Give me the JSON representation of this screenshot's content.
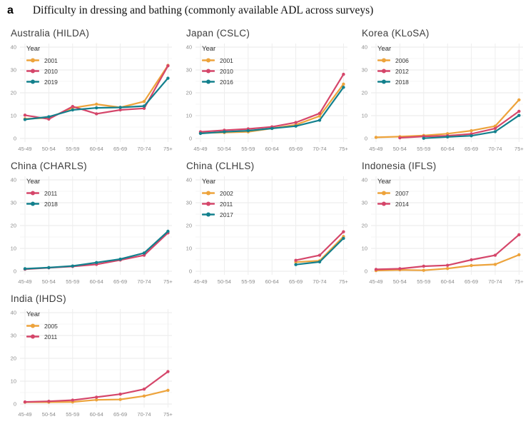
{
  "header": {
    "figure_label": "a",
    "title": "Difficulty in dressing and bathing (commonly available ADL across surveys)"
  },
  "palette": {
    "orange": "#EDA33B",
    "crimson": "#D5466A",
    "teal": "#13808D"
  },
  "chart_data": [
    {
      "type": "line",
      "title": "Australia (HILDA)",
      "legend_title": "Year",
      "legend_position": "top-left-inside",
      "grid": true,
      "categories": [
        "45-49",
        "50-54",
        "55-59",
        "60-64",
        "65-69",
        "70-74",
        "75+"
      ],
      "ylim": [
        0,
        40
      ],
      "yticks": [
        0,
        10,
        20,
        30,
        40
      ],
      "series": [
        {
          "name": "2001",
          "color": "#EDA33B",
          "values": [
            8.6,
            9.0,
            13.4,
            15.0,
            13.6,
            16.2,
            32.0
          ]
        },
        {
          "name": "2010",
          "color": "#D5466A",
          "values": [
            10.2,
            8.5,
            14.0,
            10.8,
            12.5,
            13.2,
            31.8
          ]
        },
        {
          "name": "2019",
          "color": "#13808D",
          "values": [
            8.3,
            9.5,
            12.5,
            13.4,
            13.6,
            14.2,
            26.4
          ]
        }
      ]
    },
    {
      "type": "line",
      "title": "Japan (CSLC)",
      "legend_title": "Year",
      "legend_position": "top-left-inside",
      "grid": true,
      "categories": [
        "45-49",
        "50-54",
        "55-59",
        "60-64",
        "65-69",
        "70-74",
        "75+"
      ],
      "ylim": [
        0,
        40
      ],
      "yticks": [
        0,
        10,
        20,
        30,
        40
      ],
      "series": [
        {
          "name": "2001",
          "color": "#EDA33B",
          "values": [
            2.4,
            2.6,
            2.9,
            4.4,
            6.0,
            9.8,
            23.8
          ]
        },
        {
          "name": "2010",
          "color": "#D5466A",
          "values": [
            2.9,
            3.6,
            4.2,
            5.1,
            7.0,
            11.0,
            28.1
          ]
        },
        {
          "name": "2016",
          "color": "#13808D",
          "values": [
            2.2,
            2.9,
            3.4,
            4.4,
            5.4,
            8.0,
            22.4
          ]
        }
      ]
    },
    {
      "type": "line",
      "title": "Korea (KLoSA)",
      "legend_title": "Year",
      "legend_position": "top-left-inside",
      "grid": true,
      "categories": [
        "45-49",
        "50-54",
        "55-59",
        "60-64",
        "65-69",
        "70-74",
        "75+"
      ],
      "ylim": [
        0,
        40
      ],
      "yticks": [
        0,
        10,
        20,
        30,
        40
      ],
      "series": [
        {
          "name": "2006",
          "color": "#EDA33B",
          "values": [
            0.5,
            0.8,
            1.3,
            2.1,
            3.4,
            5.4,
            16.9
          ]
        },
        {
          "name": "2012",
          "color": "#D5466A",
          "values": [
            null,
            0.3,
            0.9,
            1.2,
            2.0,
            4.4,
            11.9
          ]
        },
        {
          "name": "2018",
          "color": "#13808D",
          "values": [
            null,
            null,
            0.1,
            0.7,
            1.2,
            3.0,
            10.1
          ]
        }
      ]
    },
    {
      "type": "line",
      "title": "China (CHARLS)",
      "legend_title": "Year",
      "legend_position": "top-left-inside",
      "grid": true,
      "categories": [
        "45-49",
        "50-54",
        "55-59",
        "60-64",
        "65-69",
        "70-74",
        "75+"
      ],
      "ylim": [
        0,
        40
      ],
      "yticks": [
        0,
        10,
        20,
        30,
        40
      ],
      "series": [
        {
          "name": "2011",
          "color": "#D5466A",
          "values": [
            0.9,
            1.5,
            2.1,
            3.0,
            4.9,
            7.0,
            16.8
          ]
        },
        {
          "name": "2018",
          "color": "#13808D",
          "values": [
            1.1,
            1.6,
            2.3,
            3.8,
            5.3,
            8.0,
            17.5
          ]
        }
      ]
    },
    {
      "type": "line",
      "title": "China (CLHLS)",
      "legend_title": "Year",
      "legend_position": "top-left-inside",
      "grid": true,
      "categories": [
        "45-49",
        "50-54",
        "55-59",
        "60-64",
        "65-69",
        "70-74",
        "75+"
      ],
      "ylim": [
        0,
        40
      ],
      "yticks": [
        0,
        10,
        20,
        30,
        40
      ],
      "series": [
        {
          "name": "2002",
          "color": "#EDA33B",
          "values": [
            null,
            null,
            null,
            null,
            4.0,
            4.6,
            15.2
          ]
        },
        {
          "name": "2011",
          "color": "#D5466A",
          "values": [
            null,
            null,
            null,
            null,
            4.8,
            7.0,
            17.3
          ]
        },
        {
          "name": "2017",
          "color": "#13808D",
          "values": [
            null,
            null,
            null,
            null,
            2.9,
            4.1,
            14.4
          ]
        }
      ]
    },
    {
      "type": "line",
      "title": "Indonesia (IFLS)",
      "legend_title": "Year",
      "legend_position": "top-left-inside",
      "grid": true,
      "categories": [
        "45-49",
        "50-54",
        "55-59",
        "60-64",
        "65-69",
        "70-74",
        "75+"
      ],
      "ylim": [
        0,
        40
      ],
      "yticks": [
        0,
        10,
        20,
        30,
        40
      ],
      "series": [
        {
          "name": "2007",
          "color": "#EDA33B",
          "values": [
            0.3,
            0.6,
            0.4,
            1.2,
            2.5,
            3.0,
            7.2
          ]
        },
        {
          "name": "2014",
          "color": "#D5466A",
          "values": [
            0.8,
            1.1,
            2.2,
            2.6,
            5.0,
            7.0,
            16.0
          ]
        }
      ]
    },
    {
      "type": "line",
      "title": "India (IHDS)",
      "legend_title": "Year",
      "legend_position": "top-left-inside",
      "grid": true,
      "categories": [
        "45-49",
        "50-54",
        "55-59",
        "60-64",
        "65-69",
        "70-74",
        "75+"
      ],
      "ylim": [
        0,
        40
      ],
      "yticks": [
        0,
        10,
        20,
        30,
        40
      ],
      "series": [
        {
          "name": "2005",
          "color": "#EDA33B",
          "values": [
            0.8,
            0.8,
            0.9,
            1.8,
            2.0,
            3.5,
            6.0
          ]
        },
        {
          "name": "2011",
          "color": "#D5466A",
          "values": [
            0.9,
            1.2,
            1.7,
            3.0,
            4.3,
            6.5,
            14.2
          ]
        }
      ]
    }
  ]
}
